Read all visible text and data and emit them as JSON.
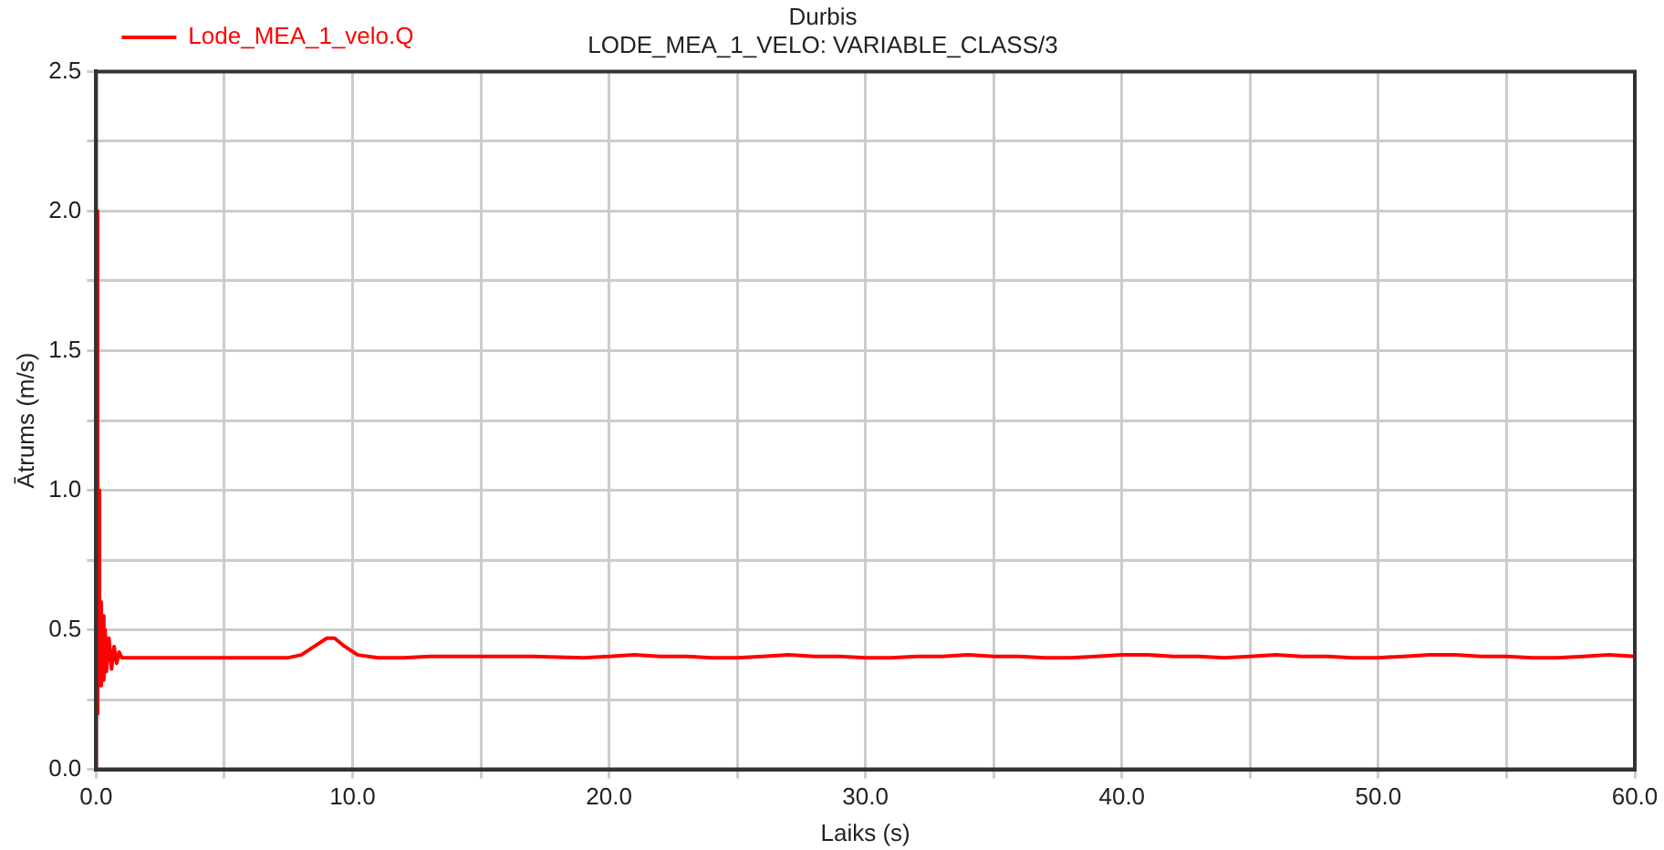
{
  "chart_data": {
    "type": "line",
    "title": "Durbis",
    "subtitle": "LODE_MEA_1_VELO: VARIABLE_CLASS/3",
    "xlabel": "Laiks (s)",
    "ylabel": "Ātrums (m/s)",
    "xlim": [
      0,
      60
    ],
    "ylim": [
      0,
      2.5
    ],
    "xticks": [
      {
        "value": 0,
        "label": "0.0"
      },
      {
        "value": 5,
        "label": null
      },
      {
        "value": 10,
        "label": "10.0"
      },
      {
        "value": 15,
        "label": null
      },
      {
        "value": 20,
        "label": "20.0"
      },
      {
        "value": 25,
        "label": null
      },
      {
        "value": 30,
        "label": "30.0"
      },
      {
        "value": 35,
        "label": null
      },
      {
        "value": 40,
        "label": "40.0"
      },
      {
        "value": 45,
        "label": null
      },
      {
        "value": 50,
        "label": "50.0"
      },
      {
        "value": 55,
        "label": null
      },
      {
        "value": 60,
        "label": "60.0"
      }
    ],
    "yticks": [
      {
        "value": 0,
        "label": "0.0"
      },
      {
        "value": 0.25,
        "label": null
      },
      {
        "value": 0.5,
        "label": "0.5"
      },
      {
        "value": 0.75,
        "label": null
      },
      {
        "value": 1,
        "label": "1.0"
      },
      {
        "value": 1.25,
        "label": null
      },
      {
        "value": 1.5,
        "label": "1.5"
      },
      {
        "value": 1.75,
        "label": null
      },
      {
        "value": 2,
        "label": "2.0"
      },
      {
        "value": 2.25,
        "label": null
      },
      {
        "value": 2.5,
        "label": "2.5"
      }
    ],
    "grid": true,
    "legend": "top left",
    "marker": "none",
    "line_style": "solid",
    "series": [
      {
        "name": "Lode_MEA_1_velo.Q",
        "color": "#ff0000",
        "x": [
          0,
          0.03,
          0.06,
          0.1,
          0.13,
          0.17,
          0.2,
          0.25,
          0.3,
          0.35,
          0.4,
          0.5,
          0.6,
          0.7,
          0.8,
          0.9,
          1.0,
          2,
          4,
          6,
          7.5,
          8,
          8.5,
          9,
          9.3,
          9.7,
          10.2,
          11,
          12,
          13,
          15,
          17,
          19,
          20,
          21,
          22,
          23,
          24,
          25,
          26,
          27,
          28,
          29,
          30,
          31,
          32,
          33,
          34,
          35,
          36,
          37,
          38,
          39,
          40,
          41,
          42,
          43,
          44,
          45,
          46,
          47,
          48,
          49,
          50,
          51,
          52,
          53,
          54,
          55,
          56,
          57,
          58,
          59,
          60
        ],
        "values": [
          0,
          2.0,
          0.2,
          1.0,
          0.3,
          0.6,
          0.3,
          0.55,
          0.32,
          0.5,
          0.35,
          0.47,
          0.36,
          0.44,
          0.38,
          0.42,
          0.4,
          0.4,
          0.4,
          0.4,
          0.4,
          0.41,
          0.44,
          0.47,
          0.47,
          0.44,
          0.41,
          0.4,
          0.4,
          0.405,
          0.405,
          0.405,
          0.4,
          0.405,
          0.41,
          0.405,
          0.405,
          0.4,
          0.4,
          0.405,
          0.41,
          0.405,
          0.405,
          0.4,
          0.4,
          0.405,
          0.405,
          0.41,
          0.405,
          0.405,
          0.4,
          0.4,
          0.405,
          0.41,
          0.41,
          0.405,
          0.405,
          0.4,
          0.405,
          0.41,
          0.405,
          0.405,
          0.4,
          0.4,
          0.405,
          0.41,
          0.41,
          0.405,
          0.405,
          0.4,
          0.4,
          0.405,
          0.41,
          0.405
        ]
      }
    ]
  }
}
